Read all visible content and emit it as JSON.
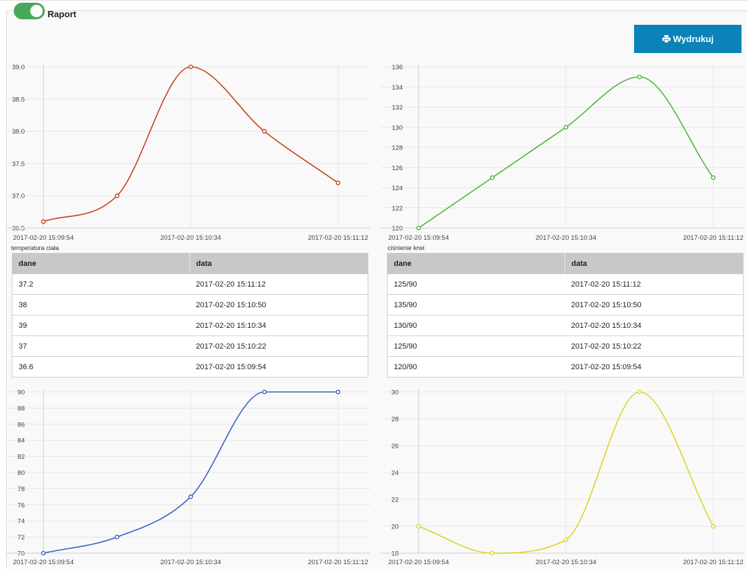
{
  "report": {
    "title": "Raport",
    "toggle_on": true,
    "print_label": "Wydrukuj",
    "print_icon": "printer-icon"
  },
  "tables": [
    {
      "headers": [
        "dane",
        "data"
      ],
      "rows": [
        [
          "37.2",
          "2017-02-20 15:11:12"
        ],
        [
          "38",
          "2017-02-20 15:10:50"
        ],
        [
          "39",
          "2017-02-20 15:10:34"
        ],
        [
          "37",
          "2017-02-20 15:10:22"
        ],
        [
          "36.6",
          "2017-02-20 15:09:54"
        ]
      ]
    },
    {
      "headers": [
        "dane",
        "data"
      ],
      "rows": [
        [
          "125/90",
          "2017-02-20 15:11:12"
        ],
        [
          "135/90",
          "2017-02-20 15:10:50"
        ],
        [
          "130/90",
          "2017-02-20 15:10:34"
        ],
        [
          "125/90",
          "2017-02-20 15:10:22"
        ],
        [
          "120/90",
          "2017-02-20 15:09:54"
        ]
      ]
    }
  ],
  "chart_data": [
    {
      "type": "line",
      "caption": "temperatura ciała",
      "x": [
        "2017-02-20 15:09:54",
        "2017-02-20 15:10:22",
        "2017-02-20 15:10:34",
        "2017-02-20 15:10:50",
        "2017-02-20 15:11:12"
      ],
      "x_tick_labels": [
        "2017-02-20 15:09:54",
        "2017-02-20 15:10:34",
        "2017-02-20 15:11:12"
      ],
      "y_ticks": [
        "36.5",
        "37.0",
        "37.5",
        "38.0",
        "38.5",
        "39.0"
      ],
      "ylim": [
        36.5,
        39.0
      ],
      "series": [
        {
          "values": [
            36.6,
            37,
            39,
            38,
            37.2
          ],
          "color": "#c9401f",
          "smooth": true
        }
      ],
      "grid": true
    },
    {
      "type": "line",
      "caption": "ciśnienie krwi",
      "x": [
        "2017-02-20 15:09:54",
        "2017-02-20 15:10:22",
        "2017-02-20 15:10:34",
        "2017-02-20 15:10:50",
        "2017-02-20 15:11:12"
      ],
      "x_tick_labels": [
        "2017-02-20 15:09:54",
        "2017-02-20 15:10:34",
        "2017-02-20 15:11:12"
      ],
      "y_ticks": [
        "120",
        "122",
        "124",
        "126",
        "128",
        "130",
        "132",
        "134",
        "136"
      ],
      "ylim": [
        120,
        136
      ],
      "series": [
        {
          "values": [
            120,
            125,
            130,
            135,
            125
          ],
          "color": "#4db43c",
          "smooth": true
        }
      ],
      "grid": true
    },
    {
      "type": "line",
      "caption": "",
      "x": [
        "2017-02-20 15:09:54",
        "2017-02-20 15:10:22",
        "2017-02-20 15:10:34",
        "2017-02-20 15:10:50",
        "2017-02-20 15:11:12"
      ],
      "x_tick_labels": [
        "2017-02-20 15:09:54",
        "2017-02-20 15:10:34",
        "2017-02-20 15:11:12"
      ],
      "y_ticks": [
        "70",
        "72",
        "74",
        "76",
        "78",
        "80",
        "82",
        "84",
        "86",
        "88",
        "90"
      ],
      "ylim": [
        70,
        90
      ],
      "series": [
        {
          "values": [
            70,
            72,
            77,
            90,
            90
          ],
          "color": "#3b5fc4",
          "smooth": true
        }
      ],
      "grid": true
    },
    {
      "type": "line",
      "caption": "",
      "x": [
        "2017-02-20 15:09:54",
        "2017-02-20 15:10:22",
        "2017-02-20 15:10:34",
        "2017-02-20 15:10:50",
        "2017-02-20 15:11:12"
      ],
      "x_tick_labels": [
        "2017-02-20 15:09:54",
        "2017-02-20 15:10:34",
        "2017-02-20 15:11:12"
      ],
      "y_ticks": [
        "18",
        "20",
        "22",
        "24",
        "26",
        "28",
        "30"
      ],
      "ylim": [
        18,
        30
      ],
      "series": [
        {
          "values": [
            20,
            18,
            19,
            30,
            20
          ],
          "color": "#dcd52a",
          "smooth": true
        }
      ],
      "grid": true
    }
  ]
}
